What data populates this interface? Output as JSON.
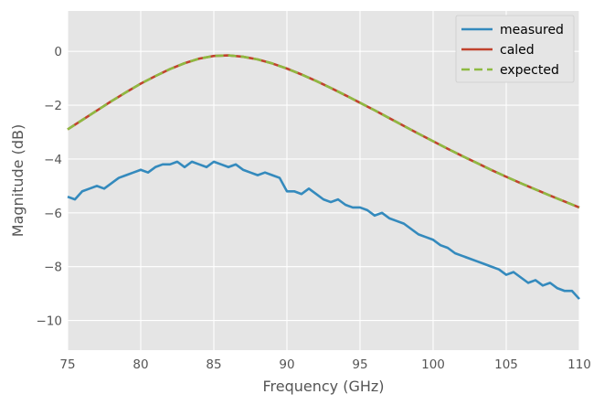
{
  "chart_data": {
    "type": "line",
    "title": "",
    "xlabel": "Frequency (GHz)",
    "ylabel": "Magnitude (dB)",
    "xlim": [
      75,
      110
    ],
    "ylim": [
      -11.1,
      1.5
    ],
    "xticks": [
      75,
      80,
      85,
      90,
      95,
      100,
      105,
      110
    ],
    "yticks": [
      0,
      -2,
      -4,
      -6,
      -8,
      -10
    ],
    "xtick_labels": [
      "75",
      "80",
      "85",
      "90",
      "95",
      "100",
      "105",
      "110"
    ],
    "ytick_labels": [
      "0",
      "−2",
      "−4",
      "−6",
      "−8",
      "−10"
    ],
    "grid": true,
    "legend_position": "top-right",
    "series": [
      {
        "name": "measured",
        "color": "#348ABD",
        "style": "solid",
        "x": [
          75.0,
          75.5,
          76.0,
          76.5,
          77.0,
          77.5,
          78.0,
          78.5,
          79.0,
          79.5,
          80.0,
          80.5,
          81.0,
          81.5,
          82.0,
          82.5,
          83.0,
          83.5,
          84.0,
          84.5,
          85.0,
          85.5,
          86.0,
          86.5,
          87.0,
          87.5,
          88.0,
          88.5,
          89.0,
          89.5,
          90.0,
          90.5,
          91.0,
          91.5,
          92.0,
          92.5,
          93.0,
          93.5,
          94.0,
          94.5,
          95.0,
          95.5,
          96.0,
          96.5,
          97.0,
          97.5,
          98.0,
          98.5,
          99.0,
          99.5,
          100.0,
          100.5,
          101.0,
          101.5,
          102.0,
          102.5,
          103.0,
          103.5,
          104.0,
          104.5,
          105.0,
          105.5,
          106.0,
          106.5,
          107.0,
          107.5,
          108.0,
          108.5,
          109.0,
          109.5,
          110.0
        ],
        "y": [
          -5.4,
          -5.5,
          -5.2,
          -5.1,
          -5.0,
          -5.1,
          -4.9,
          -4.7,
          -4.6,
          -4.5,
          -4.4,
          -4.5,
          -4.3,
          -4.2,
          -4.2,
          -4.1,
          -4.3,
          -4.1,
          -4.2,
          -4.3,
          -4.1,
          -4.2,
          -4.3,
          -4.2,
          -4.4,
          -4.5,
          -4.6,
          -4.5,
          -4.6,
          -4.7,
          -5.2,
          -5.2,
          -5.3,
          -5.1,
          -5.3,
          -5.5,
          -5.6,
          -5.5,
          -5.7,
          -5.8,
          -5.8,
          -5.9,
          -6.1,
          -6.0,
          -6.2,
          -6.3,
          -6.4,
          -6.6,
          -6.8,
          -6.9,
          -7.0,
          -7.2,
          -7.3,
          -7.5,
          -7.6,
          -7.7,
          -7.8,
          -7.9,
          -8.0,
          -8.1,
          -8.3,
          -8.2,
          -8.4,
          -8.6,
          -8.5,
          -8.7,
          -8.6,
          -8.8,
          -8.9,
          -8.9,
          -9.2
        ]
      },
      {
        "name": "caled",
        "color": "#C1432D",
        "style": "solid",
        "x": [
          75.0,
          76.0,
          77.0,
          78.0,
          79.0,
          80.0,
          81.0,
          82.0,
          83.0,
          84.0,
          85.0,
          86.0,
          87.0,
          88.0,
          89.0,
          90.0,
          91.0,
          92.0,
          93.0,
          94.0,
          95.0,
          96.0,
          97.0,
          98.0,
          99.0,
          100.0,
          101.0,
          102.0,
          103.0,
          104.0,
          105.0,
          106.0,
          107.0,
          108.0,
          109.0,
          110.0
        ],
        "y": [
          -2.9,
          -2.55,
          -2.2,
          -1.85,
          -1.52,
          -1.2,
          -0.92,
          -0.66,
          -0.44,
          -0.27,
          -0.17,
          -0.15,
          -0.2,
          -0.3,
          -0.45,
          -0.64,
          -0.86,
          -1.1,
          -1.36,
          -1.63,
          -1.91,
          -2.19,
          -2.48,
          -2.77,
          -3.06,
          -3.34,
          -3.62,
          -3.89,
          -4.15,
          -4.41,
          -4.66,
          -4.9,
          -5.13,
          -5.36,
          -5.58,
          -5.8
        ]
      },
      {
        "name": "expected",
        "color": "#8EBA42",
        "style": "dashed",
        "x": [
          75.0,
          76.0,
          77.0,
          78.0,
          79.0,
          80.0,
          81.0,
          82.0,
          83.0,
          84.0,
          85.0,
          86.0,
          87.0,
          88.0,
          89.0,
          90.0,
          91.0,
          92.0,
          93.0,
          94.0,
          95.0,
          96.0,
          97.0,
          98.0,
          99.0,
          100.0,
          101.0,
          102.0,
          103.0,
          104.0,
          105.0,
          106.0,
          107.0,
          108.0,
          109.0,
          110.0
        ],
        "y": [
          -2.9,
          -2.55,
          -2.2,
          -1.85,
          -1.52,
          -1.2,
          -0.92,
          -0.66,
          -0.44,
          -0.27,
          -0.17,
          -0.15,
          -0.2,
          -0.3,
          -0.45,
          -0.64,
          -0.86,
          -1.1,
          -1.36,
          -1.63,
          -1.91,
          -2.19,
          -2.48,
          -2.77,
          -3.06,
          -3.34,
          -3.62,
          -3.89,
          -4.15,
          -4.41,
          -4.66,
          -4.9,
          -5.13,
          -5.36,
          -5.58,
          -5.8
        ]
      }
    ]
  }
}
